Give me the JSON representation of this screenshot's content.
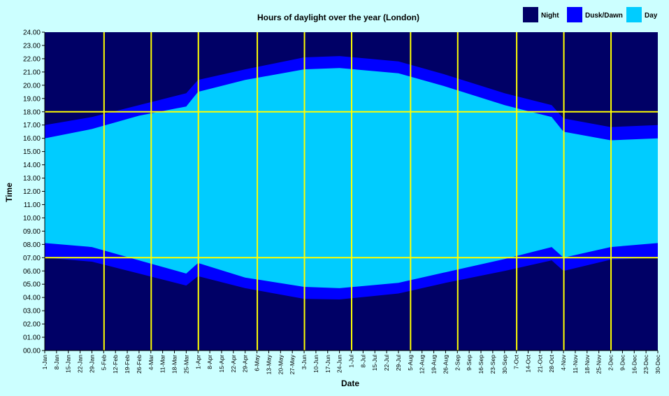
{
  "chart_data": {
    "type": "area",
    "title": "Hours of daylight over the year (London)",
    "xlabel": "Date",
    "ylabel": "Time",
    "ylim": [
      0,
      24
    ],
    "y_ticks": [
      "00.00",
      "01.00",
      "02.00",
      "03.00",
      "04.00",
      "05.00",
      "06.00",
      "07.00",
      "08.00",
      "09.00",
      "10.00",
      "11.00",
      "12.00",
      "13.00",
      "14.00",
      "15.00",
      "16.00",
      "17.00",
      "18.00",
      "19.00",
      "20.00",
      "21.00",
      "22.00",
      "23.00",
      "24.00"
    ],
    "x_ticks": [
      "1-Jan",
      "8-Jan",
      "15-Jan",
      "22-Jan",
      "29-Jan",
      "5-Feb",
      "12-Feb",
      "19-Feb",
      "26-Feb",
      "4-Mar",
      "11-Mar",
      "18-Mar",
      "25-Mar",
      "1-Apr",
      "8-Apr",
      "15-Apr",
      "22-Apr",
      "29-Apr",
      "6-May",
      "13-May",
      "20-May",
      "27-May",
      "3-Jun",
      "10-Jun",
      "17-Jun",
      "24-Jun",
      "1-Jul",
      "8-Jul",
      "15-Jul",
      "22-Jul",
      "29-Jul",
      "5-Aug",
      "12-Aug",
      "19-Aug",
      "26-Aug",
      "2-Sep",
      "9-Sep",
      "16-Sep",
      "23-Sep",
      "30-Sep",
      "7-Oct",
      "14-Oct",
      "21-Oct",
      "28-Oct",
      "4-Nov",
      "11-Nov",
      "18-Nov",
      "25-Nov",
      "2-Dec",
      "9-Dec",
      "16-Dec",
      "23-Dec",
      "30-Dec"
    ],
    "reference_lines_time": [
      7,
      18
    ],
    "reference_lines_date": [
      "5-Feb",
      "4-Mar",
      "1-Apr",
      "6-May",
      "3-Jun",
      "1-Jul",
      "5-Aug",
      "2-Sep",
      "7-Oct",
      "4-Nov",
      "2-Dec"
    ],
    "legend_placement": "top-right",
    "colors": {
      "night": "#000066",
      "dusk_dawn": "#0000ff",
      "day": "#00ccff",
      "background": "#ccffff",
      "reference_line": "#ffff00"
    },
    "series": [
      {
        "name": "Night",
        "values": []
      },
      {
        "name": "Dusk/Dawn",
        "x": [
          "1-Jan",
          "29-Jan",
          "26-Feb",
          "25-Mar",
          "1-Apr",
          "29-Apr",
          "3-Jun",
          "24-Jun",
          "29-Jul",
          "26-Aug",
          "30-Sep",
          "28-Oct",
          "4-Nov",
          "2-Dec",
          "30-Dec"
        ],
        "dawn_start": [
          7.0,
          6.7,
          5.8,
          4.9,
          5.6,
          4.7,
          3.9,
          3.85,
          4.3,
          5.1,
          6.0,
          6.8,
          6.0,
          6.85,
          7.0
        ],
        "dusk_end": [
          17.0,
          17.6,
          18.5,
          19.4,
          20.4,
          21.2,
          22.1,
          22.2,
          21.8,
          20.8,
          19.4,
          18.5,
          17.5,
          16.85,
          17.0
        ]
      },
      {
        "name": "Day",
        "x": [
          "1-Jan",
          "29-Jan",
          "26-Feb",
          "25-Mar",
          "1-Apr",
          "29-Apr",
          "3-Jun",
          "24-Jun",
          "29-Jul",
          "26-Aug",
          "30-Sep",
          "28-Oct",
          "4-Nov",
          "2-Dec",
          "30-Dec"
        ],
        "sunrise": [
          8.1,
          7.8,
          6.8,
          5.8,
          6.6,
          5.5,
          4.8,
          4.7,
          5.1,
          5.9,
          6.9,
          7.8,
          7.0,
          7.8,
          8.1
        ],
        "sunset": [
          16.0,
          16.7,
          17.7,
          18.4,
          19.5,
          20.4,
          21.2,
          21.3,
          20.9,
          19.9,
          18.5,
          17.6,
          16.5,
          15.85,
          16.0
        ]
      }
    ]
  }
}
